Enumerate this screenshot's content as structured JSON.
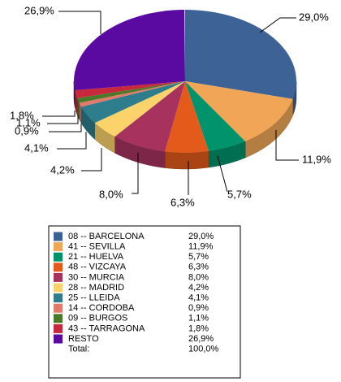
{
  "chart_data": {
    "type": "pie3d",
    "categories": [
      "08 -- BARCELONA",
      "41 -- SEVILLA",
      "21 -- HUELVA",
      "48 -- VIZCAYA",
      "30 -- MURCIA",
      "28 -- MADRID",
      "25 -- LLEIDA",
      "14 -- CORDOBA",
      "09 -- BURGOS",
      "43 -- TARRAGONA",
      "RESTO"
    ],
    "values": [
      29.0,
      11.9,
      5.7,
      6.3,
      8.0,
      4.2,
      4.1,
      0.9,
      1.1,
      1.8,
      26.9
    ],
    "value_labels": [
      "29,0%",
      "11,9%",
      "5,7%",
      "6,3%",
      "8,0%",
      "4,2%",
      "4,1%",
      "0,9%",
      "1,1%",
      "1,8%",
      "26,9%"
    ],
    "colors": [
      "#3d6396",
      "#f0a656",
      "#00936c",
      "#e35a1a",
      "#a8325e",
      "#fcd26a",
      "#2e7d8c",
      "#e07a6a",
      "#4a7a28",
      "#c8283c",
      "#5a0aa0"
    ],
    "total": {
      "label": "Total:",
      "value": 100,
      "value_label": "100,0%"
    }
  }
}
